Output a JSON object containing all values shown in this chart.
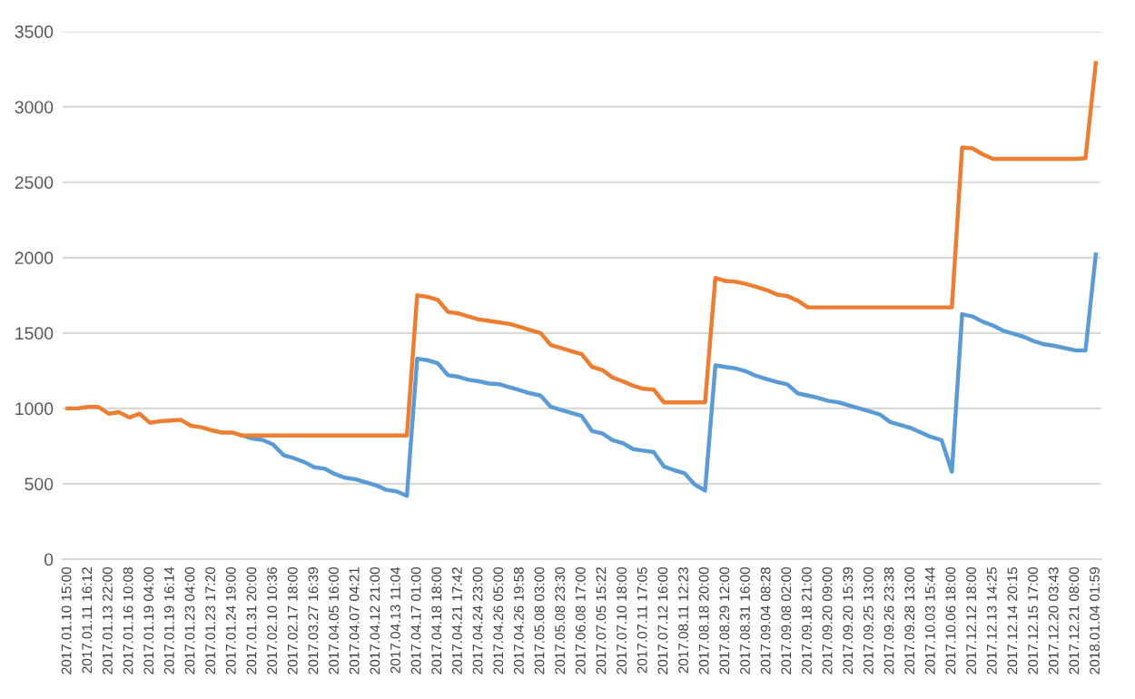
{
  "chart_data": {
    "type": "line",
    "categories": [
      "2017.01.10 15:00",
      null,
      "2017.01.11 16:12",
      null,
      "2017.01.13 22:00",
      null,
      "2017.01.16 10:08",
      null,
      "2017.01.19 04:00",
      null,
      "2017.01.19 16:14",
      null,
      "2017.01.23 04:00",
      null,
      "2017.01.23 17:20",
      null,
      "2017.01.24 19:00",
      null,
      "2017.01.31 20:00",
      null,
      "2017.02.10 10:36",
      null,
      "2017.02.17 18:00",
      null,
      "2017.03.27 16:39",
      null,
      "2017.04.05 16:00",
      null,
      "2017.04.07 04:21",
      null,
      "2017.04.12 21:00",
      null,
      "2017.04.13 11:04",
      null,
      "2017.04.17 01:00",
      null,
      "2017.04.18 18:00",
      null,
      "2017.04.21 17:42",
      null,
      "2017.04.24 23:00",
      null,
      "2017.04.26 05:00",
      null,
      "2017.04.26 19:58",
      null,
      "2017.05.08 03:00",
      null,
      "2017.05.08 23:30",
      null,
      "2017.06.08 17:00",
      null,
      "2017.07.05 15:22",
      null,
      "2017.07.10 18:00",
      null,
      "2017.07.11 17:05",
      null,
      "2017.07.12 16:00",
      null,
      "2017.08.11 12:23",
      null,
      "2017.08.18 20:00",
      null,
      "2017.08.29 12:00",
      null,
      "2017.08.31 16:00",
      null,
      "2017.09.04 08:28",
      null,
      "2017.09.08 02:00",
      null,
      "2017.09.18 21:00",
      null,
      "2017.09.20 09:00",
      null,
      "2017.09.20 15:39",
      null,
      "2017.09.25 13:00",
      null,
      "2017.09.26 23:38",
      null,
      "2017.09.28 13:00",
      null,
      "2017.10.03 15:44",
      null,
      "2017.10.06 18:00",
      null,
      "2017.12.12 18:00",
      null,
      "2017.12.13 14:25",
      null,
      "2017.12.14 20:15",
      null,
      "2017.12.15 17:00",
      null,
      "2017.12.20 03:43",
      null,
      "2017.12.21 08:00",
      null,
      "2018.01.04 01:59"
    ],
    "series": [
      {
        "color": "#5b9bd5",
        "values": [
          null,
          null,
          null,
          null,
          null,
          null,
          null,
          null,
          null,
          null,
          null,
          null,
          null,
          null,
          null,
          null,
          null,
          820,
          800,
          790,
          760,
          690,
          670,
          645,
          610,
          600,
          565,
          540,
          530,
          510,
          490,
          460,
          450,
          420,
          1330,
          1320,
          1300,
          1220,
          1210,
          1190,
          1180,
          1165,
          1160,
          1140,
          1120,
          1100,
          1085,
          1010,
          990,
          970,
          950,
          850,
          835,
          790,
          770,
          730,
          720,
          710,
          615,
          590,
          570,
          495,
          455,
          1285,
          1275,
          1265,
          1245,
          1215,
          1195,
          1175,
          1160,
          1100,
          1085,
          1070,
          1050,
          1040,
          1020,
          1000,
          980,
          960,
          910,
          890,
          870,
          840,
          810,
          790,
          580,
          1625,
          1610,
          1575,
          1550,
          1515,
          1495,
          1475,
          1445,
          1425,
          1415,
          1400,
          1385,
          1385,
          2020
        ]
      },
      {
        "color": "#ed7d31",
        "values": [
          1000,
          1000,
          1010,
          1010,
          965,
          975,
          940,
          965,
          905,
          915,
          920,
          925,
          885,
          875,
          855,
          840,
          840,
          820,
          820,
          820,
          820,
          820,
          820,
          820,
          820,
          820,
          820,
          820,
          820,
          820,
          820,
          820,
          820,
          820,
          1750,
          1740,
          1720,
          1640,
          1630,
          1610,
          1590,
          1580,
          1570,
          1560,
          1540,
          1520,
          1500,
          1420,
          1400,
          1380,
          1360,
          1275,
          1255,
          1205,
          1180,
          1150,
          1130,
          1125,
          1040,
          1040,
          1040,
          1040,
          1040,
          1865,
          1845,
          1840,
          1825,
          1805,
          1785,
          1755,
          1745,
          1715,
          1670,
          1670,
          1670,
          1670,
          1670,
          1670,
          1670,
          1670,
          1670,
          1670,
          1670,
          1670,
          1670,
          1670,
          1670,
          2730,
          2725,
          2685,
          2655,
          2655,
          2655,
          2655,
          2655,
          2655,
          2655,
          2655,
          2655,
          2660,
          3290
        ]
      }
    ],
    "ylim": [
      0,
      3500
    ],
    "yticks": [
      0,
      500,
      1000,
      1500,
      2000,
      2500,
      3000,
      3500
    ],
    "grid": "y",
    "legend": false,
    "marker": "none",
    "line_style": "solid"
  }
}
